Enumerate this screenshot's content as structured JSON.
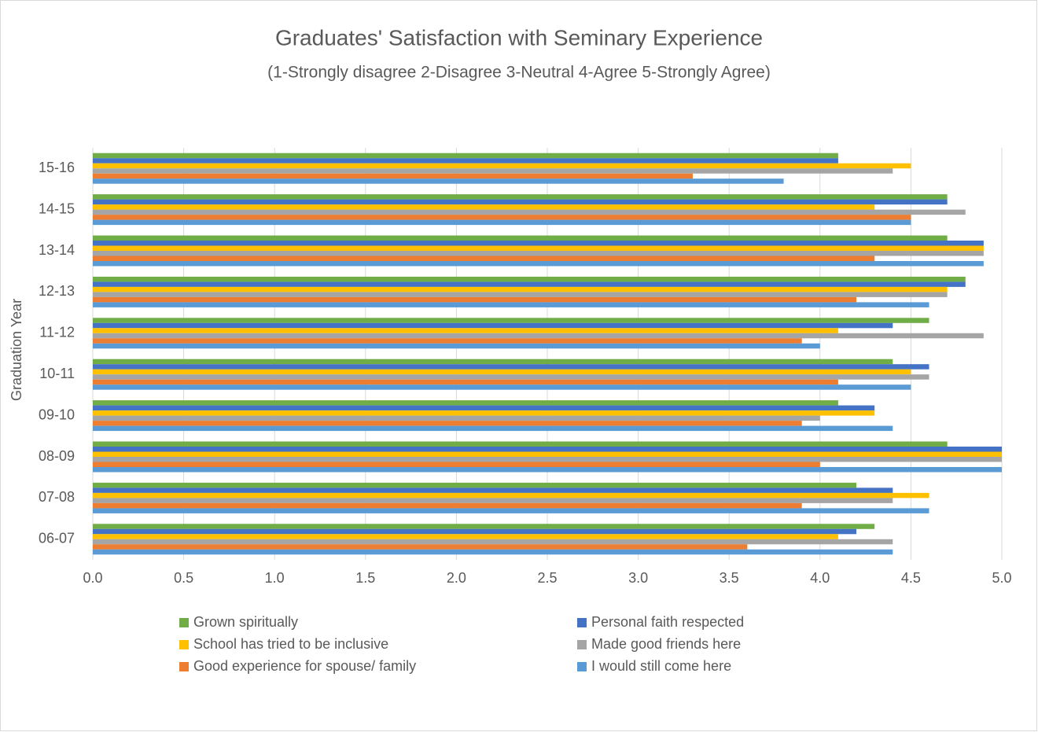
{
  "chart_data": {
    "type": "hbar",
    "title": "Graduates' Satisfaction with Seminary Experience",
    "subtitle": "(1-Strongly disagree 2-Disagree 3-Neutral 4-Agree 5-Strongly Agree)",
    "y_label": "Graduation Year",
    "categories": [
      "06-07",
      "07-08",
      "08-09",
      "09-10",
      "10-11",
      "11-12",
      "12-13",
      "13-14",
      "14-15",
      "15-16"
    ],
    "series": [
      {
        "name": "Grown spiritually",
        "color": "#70ad47",
        "values": [
          4.3,
          4.2,
          4.7,
          4.1,
          4.4,
          4.6,
          4.8,
          4.7,
          4.7,
          4.1
        ]
      },
      {
        "name": "Personal faith respected",
        "color": "#4472c4",
        "values": [
          4.2,
          4.4,
          5.0,
          4.3,
          4.6,
          4.4,
          4.8,
          4.9,
          4.7,
          4.1
        ]
      },
      {
        "name": "School has tried to be inclusive",
        "color": "#ffc000",
        "values": [
          4.1,
          4.6,
          5.0,
          4.3,
          4.5,
          4.1,
          4.7,
          4.9,
          4.3,
          4.5
        ]
      },
      {
        "name": "Made good friends here",
        "color": "#a5a5a5",
        "values": [
          4.4,
          4.4,
          5.0,
          4.0,
          4.6,
          4.9,
          4.7,
          4.9,
          4.8,
          4.4
        ]
      },
      {
        "name": "Good experience for spouse/ family",
        "color": "#ed7d31",
        "values": [
          3.6,
          3.9,
          4.0,
          3.9,
          4.1,
          3.9,
          4.2,
          4.3,
          4.5,
          3.3
        ]
      },
      {
        "name": "I would still come here",
        "color": "#5b9bd5",
        "values": [
          4.4,
          4.6,
          5.0,
          4.4,
          4.5,
          4.0,
          4.6,
          4.9,
          4.5,
          3.8
        ]
      }
    ],
    "xlim": [
      0,
      5
    ],
    "xticks": [
      {
        "value": 0,
        "label": "0.0"
      },
      0.5,
      {
        "value": 1,
        "label": "1.0"
      },
      1.5,
      {
        "value": 2,
        "label": "2.0"
      },
      2.5,
      {
        "value": 3,
        "label": "3.0"
      },
      3.5,
      {
        "value": 4,
        "label": "4.0"
      },
      4.5,
      {
        "value": 5,
        "label": "5.0"
      }
    ],
    "grid": true,
    "legend": "bottom"
  }
}
